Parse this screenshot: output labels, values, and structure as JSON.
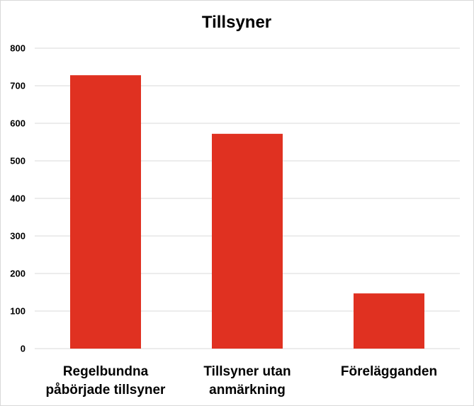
{
  "chart_data": {
    "type": "bar",
    "title": "Tillsyner",
    "categories": [
      [
        "Regelbundna",
        "påbörjade tillsyner"
      ],
      [
        "Tillsyner utan",
        "anmärkning"
      ],
      [
        "Förelägganden"
      ]
    ],
    "values": [
      728,
      572,
      147
    ],
    "ylim": [
      0,
      800
    ],
    "yticks": [
      0,
      100,
      200,
      300,
      400,
      500,
      600,
      700,
      800
    ],
    "grid": true,
    "legend": "none",
    "bar_color": "#e03121"
  }
}
